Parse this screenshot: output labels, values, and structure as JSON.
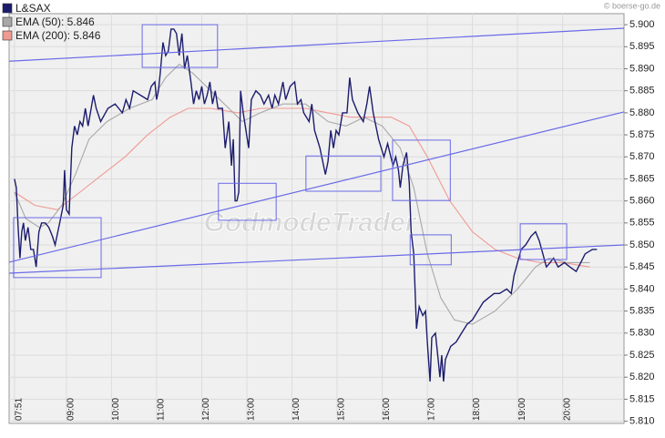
{
  "chart_data": {
    "type": "line",
    "copyright": "© boerse-go.de",
    "watermark": "GodmodeTrader",
    "legend": "upper left",
    "grid": true,
    "xlim": [
      7.73,
      21.36
    ],
    "ylim": [
      5.8095,
      5.9025
    ],
    "xticks": [
      {
        "value": 7.85,
        "label": "07:51"
      },
      {
        "value": 9,
        "label": "09:00"
      },
      {
        "value": 10,
        "label": "10:00"
      },
      {
        "value": 11,
        "label": "11:00"
      },
      {
        "value": 12,
        "label": "12:00"
      },
      {
        "value": 13,
        "label": "13:00"
      },
      {
        "value": 14,
        "label": "14:00"
      },
      {
        "value": 15,
        "label": "15:00"
      },
      {
        "value": 16,
        "label": "16:00"
      },
      {
        "value": 17,
        "label": "17:00"
      },
      {
        "value": 18,
        "label": "18:00"
      },
      {
        "value": 19,
        "label": "19:00"
      },
      {
        "value": 20,
        "label": "20:00"
      }
    ],
    "yticks": [
      {
        "value": 5.81,
        "label": "5.810"
      },
      5.815,
      {
        "value": 5.82,
        "label": "5.820"
      },
      5.825,
      {
        "value": 5.83,
        "label": "5.830"
      },
      5.835,
      {
        "value": 5.84,
        "label": "5.840"
      },
      5.845,
      {
        "value": 5.85,
        "label": "5.850"
      },
      5.855,
      {
        "value": 5.86,
        "label": "5.860"
      },
      5.865,
      {
        "value": 5.87,
        "label": "5.870"
      },
      5.875,
      {
        "value": 5.88,
        "label": "5.880"
      },
      5.885,
      {
        "value": 5.89,
        "label": "5.890"
      },
      5.895,
      {
        "value": 5.9,
        "label": "5.900"
      }
    ],
    "series": [
      {
        "name": "L&SAX",
        "color": "#1c1c6e",
        "x": [
          7.85,
          7.89,
          7.93,
          7.97,
          8.01,
          8.05,
          8.09,
          8.15,
          8.21,
          8.27,
          8.33,
          8.39,
          8.45,
          8.53,
          8.61,
          8.69,
          8.75,
          8.81,
          8.87,
          8.93,
          8.96,
          9.0,
          9.06,
          9.12,
          9.18,
          9.24,
          9.3,
          9.36,
          9.42,
          9.48,
          9.6,
          9.66,
          9.76,
          9.92,
          10.08,
          10.24,
          10.32,
          10.4,
          10.48,
          10.64,
          10.8,
          10.88,
          10.96,
          11.0,
          11.04,
          11.08,
          11.14,
          11.2,
          11.26,
          11.32,
          11.38,
          11.44,
          11.5,
          11.56,
          11.62,
          11.68,
          11.76,
          11.82,
          11.88,
          11.94,
          12.0,
          12.06,
          12.12,
          12.18,
          12.24,
          12.3,
          12.36,
          12.46,
          12.52,
          12.6,
          12.66,
          12.7,
          12.74,
          12.78,
          12.82,
          12.86,
          12.92,
          13.04,
          13.1,
          13.2,
          13.3,
          13.38,
          13.48,
          13.56,
          13.62,
          13.7,
          13.8,
          13.86,
          13.96,
          14.06,
          14.12,
          14.2,
          14.26,
          14.38,
          14.44,
          14.5,
          14.62,
          14.74,
          14.8,
          14.86,
          14.92,
          14.98,
          15.04,
          15.12,
          15.22,
          15.28,
          15.34,
          15.46,
          15.58,
          15.66,
          15.72,
          15.8,
          15.92,
          16.04,
          16.12,
          16.24,
          16.3,
          16.36,
          16.4,
          16.46,
          16.54,
          16.6,
          16.64,
          16.7,
          16.76,
          16.82,
          16.9,
          16.96,
          17.0,
          17.06,
          17.1,
          17.18,
          17.24,
          17.28,
          17.32,
          17.36,
          17.4,
          17.52,
          17.64,
          17.76,
          17.88,
          18.0,
          18.12,
          18.24,
          18.36,
          18.48,
          18.6,
          18.76,
          18.86,
          18.92,
          19.0,
          19.08,
          19.18,
          19.3,
          19.4,
          19.48,
          19.56,
          19.64,
          19.72,
          19.8,
          19.9,
          20.04,
          20.16,
          20.3,
          20.4,
          20.5,
          20.66,
          20.76
        ],
        "values": [
          5.865,
          5.863,
          5.854,
          5.847,
          5.853,
          5.855,
          5.851,
          5.854,
          5.849,
          5.849,
          5.845,
          5.853,
          5.855,
          5.855,
          5.854,
          5.852,
          5.85,
          5.853,
          5.856,
          5.859,
          5.867,
          5.858,
          5.857,
          5.872,
          5.877,
          5.875,
          5.878,
          5.877,
          5.881,
          5.877,
          5.884,
          5.881,
          5.878,
          5.881,
          5.882,
          5.88,
          5.883,
          5.881,
          5.885,
          5.884,
          5.883,
          5.886,
          5.887,
          5.883,
          5.885,
          5.889,
          5.896,
          5.893,
          5.894,
          5.899,
          5.899,
          5.898,
          5.893,
          5.898,
          5.89,
          5.893,
          5.887,
          5.882,
          5.885,
          5.883,
          5.886,
          5.882,
          5.884,
          5.887,
          5.882,
          5.885,
          5.881,
          5.881,
          5.872,
          5.878,
          5.868,
          5.874,
          5.86,
          5.86,
          5.862,
          5.885,
          5.88,
          5.872,
          5.883,
          5.885,
          5.884,
          5.882,
          5.884,
          5.881,
          5.884,
          5.882,
          5.887,
          5.883,
          5.886,
          5.887,
          5.882,
          5.883,
          5.88,
          5.878,
          5.882,
          5.876,
          5.872,
          5.866,
          5.869,
          5.876,
          5.872,
          5.876,
          5.875,
          5.88,
          5.88,
          5.888,
          5.883,
          5.88,
          5.878,
          5.882,
          5.886,
          5.88,
          5.874,
          5.87,
          5.873,
          5.868,
          5.87,
          5.867,
          5.863,
          5.868,
          5.871,
          5.864,
          5.853,
          5.848,
          5.831,
          5.836,
          5.834,
          5.835,
          5.828,
          5.819,
          5.829,
          5.83,
          5.824,
          5.82,
          5.825,
          5.819,
          5.824,
          5.827,
          5.828,
          5.83,
          5.832,
          5.833,
          5.835,
          5.837,
          5.838,
          5.839,
          5.839,
          5.84,
          5.839,
          5.843,
          5.846,
          5.849,
          5.85,
          5.852,
          5.853,
          5.851,
          5.848,
          5.845,
          5.846,
          5.847,
          5.845,
          5.846,
          5.845,
          5.844,
          5.846,
          5.848,
          5.849,
          5.849
        ]
      },
      {
        "name": "EMA (50): 5.846",
        "color": "#a8a8a8",
        "x": [
          7.85,
          8.1,
          8.4,
          8.6,
          8.9,
          9.2,
          9.5,
          9.9,
          10.4,
          10.9,
          11.2,
          11.5,
          11.8,
          12.2,
          12.6,
          12.9,
          13.3,
          13.8,
          14.3,
          14.8,
          15.2,
          15.6,
          16.0,
          16.4,
          16.7,
          17.0,
          17.3,
          17.6,
          18.0,
          18.5,
          19.0,
          19.4,
          19.7,
          20.1,
          20.6
        ],
        "values": [
          5.862,
          5.856,
          5.854,
          5.855,
          5.859,
          5.866,
          5.874,
          5.878,
          5.881,
          5.883,
          5.888,
          5.891,
          5.889,
          5.885,
          5.881,
          5.878,
          5.88,
          5.882,
          5.882,
          5.878,
          5.877,
          5.879,
          5.877,
          5.872,
          5.863,
          5.848,
          5.838,
          5.833,
          5.832,
          5.835,
          5.84,
          5.845,
          5.847,
          5.846,
          5.846
        ]
      },
      {
        "name": "EMA (200): 5.846",
        "color": "#f09a92",
        "x": [
          7.85,
          8.3,
          8.8,
          9.3,
          9.8,
          10.3,
          10.8,
          11.3,
          11.7,
          12.2,
          12.8,
          13.3,
          13.8,
          14.3,
          14.8,
          15.3,
          15.8,
          16.2,
          16.6,
          17.0,
          17.5,
          18.0,
          18.5,
          19.0,
          19.5,
          20.0,
          20.6
        ],
        "values": [
          5.862,
          5.859,
          5.858,
          5.862,
          5.866,
          5.87,
          5.875,
          5.879,
          5.881,
          5.881,
          5.88,
          5.881,
          5.881,
          5.881,
          5.88,
          5.879,
          5.879,
          5.879,
          5.877,
          5.87,
          5.86,
          5.853,
          5.849,
          5.847,
          5.846,
          5.846,
          5.845
        ]
      }
    ],
    "annotation_color": "#6a6ae8",
    "trendlines": [
      {
        "x": [
          7.73,
          21.36
        ],
        "y": [
          5.8917,
          5.8992
        ]
      },
      {
        "x": [
          7.73,
          21.36
        ],
        "y": [
          5.8461,
          5.8802
        ]
      },
      {
        "x": [
          7.73,
          21.36
        ],
        "y": [
          5.8436,
          5.85
        ]
      }
    ],
    "boxes": [
      {
        "x": [
          7.83,
          9.77
        ],
        "y": [
          5.8426,
          5.8562
        ]
      },
      {
        "x": [
          10.68,
          12.35
        ],
        "y": [
          5.8903,
          5.9
        ]
      },
      {
        "x": [
          12.37,
          13.65
        ],
        "y": [
          5.8556,
          5.864
        ]
      },
      {
        "x": [
          14.31,
          15.97
        ],
        "y": [
          5.8622,
          5.8702
        ]
      },
      {
        "x": [
          16.23,
          17.51
        ],
        "y": [
          5.8601,
          5.8738
        ]
      },
      {
        "x": [
          16.62,
          17.53
        ],
        "y": [
          5.8455,
          5.8523
        ]
      },
      {
        "x": [
          19.06,
          20.09
        ],
        "y": [
          5.8467,
          5.8548
        ]
      }
    ]
  }
}
